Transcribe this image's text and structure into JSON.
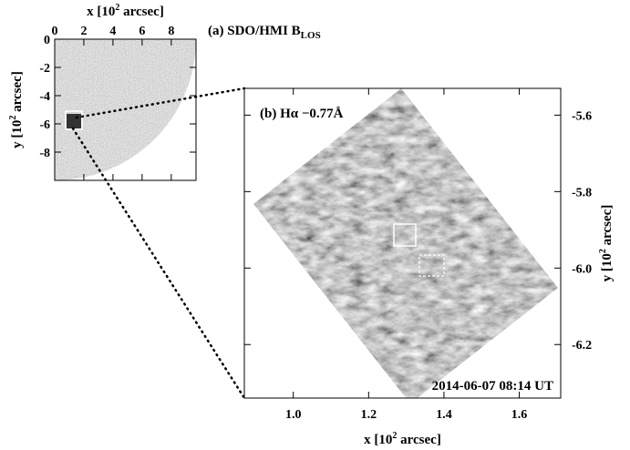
{
  "chart_data": [
    {
      "type": "image",
      "title": "(a) SDO/HMI B",
      "title_sub": "LOS",
      "xlabel": {
        "text": "x [10",
        "sup": "2",
        "after": " arcsec]"
      },
      "ylabel": {
        "text": "y [10",
        "sup": "2",
        "after": " arcsec]"
      },
      "xlim": [
        0,
        9.7
      ],
      "ylim": [
        -10,
        0
      ],
      "xticks": [
        0,
        2,
        4,
        6,
        8
      ],
      "yticks": [
        0,
        -2,
        -4,
        -6,
        -8
      ]
    },
    {
      "type": "image",
      "title": "(b) Hα −0.77Å",
      "annotation": "2014-06-07 08:14 UT",
      "xlabel": {
        "text": "x [10",
        "sup": "2",
        "after": " arcsec]"
      },
      "ylabel": {
        "text": "y [10",
        "sup": "2",
        "after": " arcsec]"
      },
      "xlim": [
        0.87,
        1.71
      ],
      "ylim": [
        -6.34,
        -5.53
      ],
      "xticks": [
        {
          "value": 1,
          "label": "1.0"
        },
        1.2,
        1.4,
        1.6
      ],
      "yticks": [
        -5.6,
        -5.8,
        {
          "value": -6,
          "label": "-6.0"
        },
        -6.2
      ]
    }
  ]
}
